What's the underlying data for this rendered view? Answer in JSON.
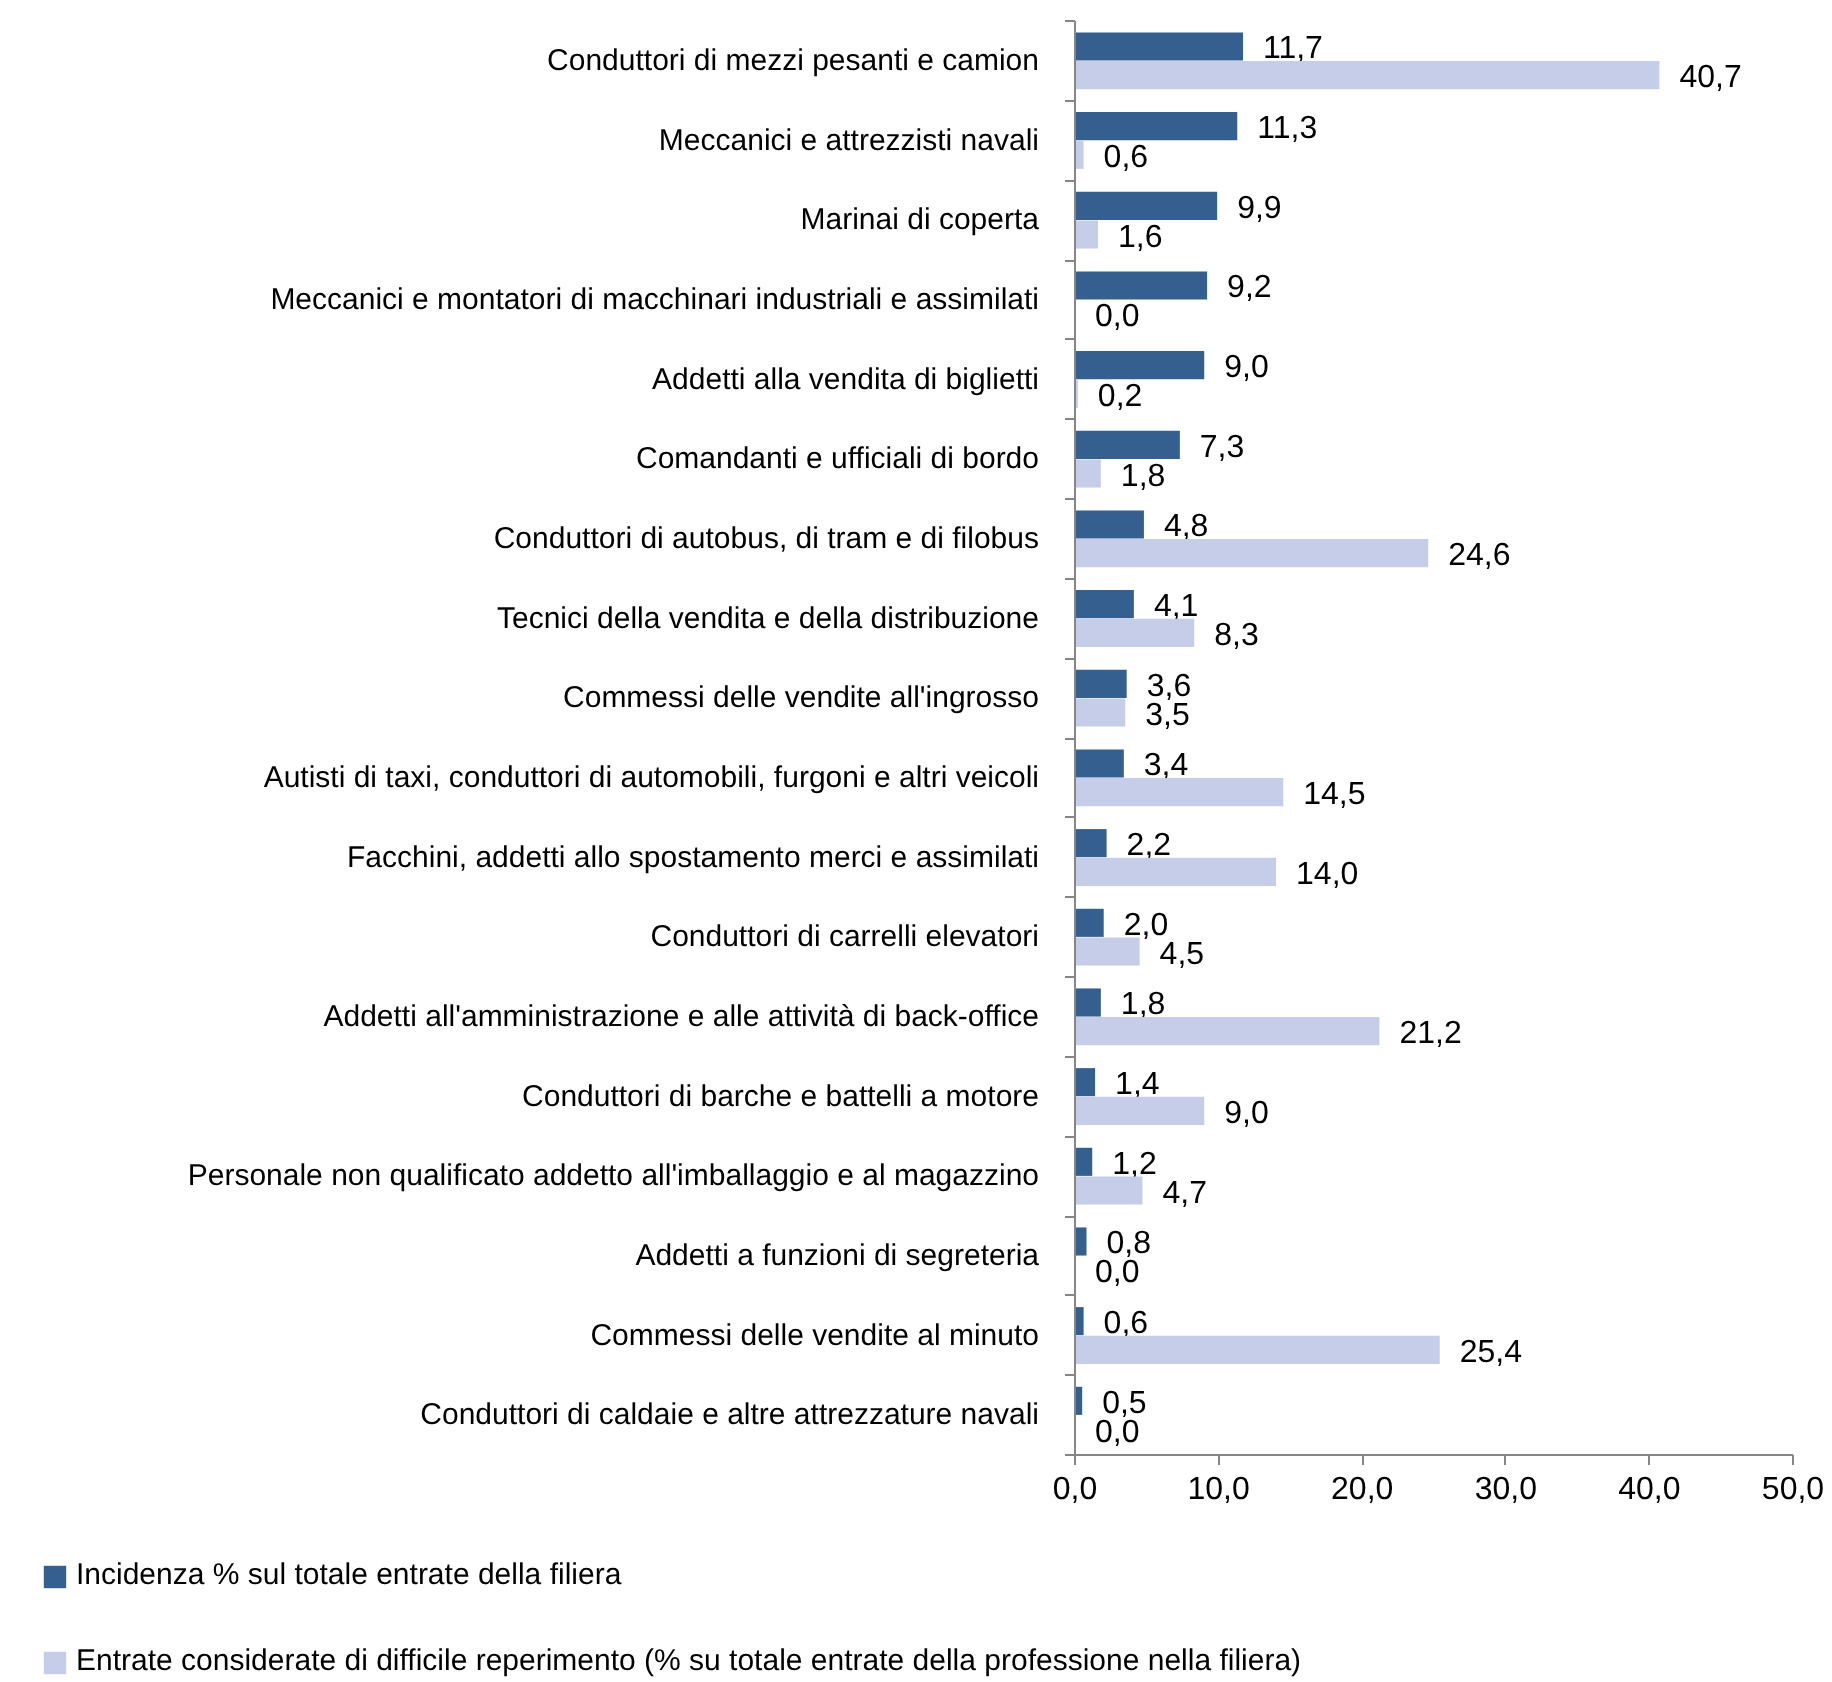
{
  "chart_data": {
    "type": "bar",
    "orientation": "horizontal",
    "categories": [
      "Conduttori di mezzi pesanti e camion",
      "Meccanici e attrezzisti navali",
      "Marinai di coperta",
      "Meccanici e montatori di macchinari industriali e assimilati",
      "Addetti alla vendita di biglietti",
      "Comandanti e ufficiali di bordo",
      "Conduttori di autobus, di tram e di filobus",
      "Tecnici della vendita e della distribuzione",
      "Commessi delle vendite all'ingrosso",
      "Autisti di taxi, conduttori di automobili, furgoni e altri veicoli",
      "Facchini, addetti allo spostamento merci e assimilati",
      "Conduttori di carrelli elevatori",
      "Addetti all'amministrazione e alle attività di back-office",
      "Conduttori di barche e battelli a motore",
      "Personale non qualificato addetto all'imballaggio e al magazzino",
      "Addetti a funzioni di segreteria",
      "Commessi delle vendite al minuto",
      "Conduttori di caldaie e altre attrezzature navali"
    ],
    "series": [
      {
        "name": "Incidenza % sul totale entrate della filiera",
        "color": "#355f8f",
        "values": [
          11.7,
          11.3,
          9.9,
          9.2,
          9.0,
          7.3,
          4.8,
          4.1,
          3.6,
          3.4,
          2.2,
          2.0,
          1.8,
          1.4,
          1.2,
          0.8,
          0.6,
          0.5
        ],
        "value_labels": [
          "11,7",
          "11,3",
          "9,9",
          "9,2",
          "9,0",
          "7,3",
          "4,8",
          "4,1",
          "3,6",
          "3,4",
          "2,2",
          "2,0",
          "1,8",
          "1,4",
          "1,2",
          "0,8",
          "0,6",
          "0,5"
        ]
      },
      {
        "name": "Entrate considerate di difficile reperimento (% su totale entrate della professione nella filiera)",
        "color": "#c6cde9",
        "values": [
          40.7,
          0.6,
          1.6,
          0.0,
          0.2,
          1.8,
          24.6,
          8.3,
          3.5,
          14.5,
          14.0,
          4.5,
          21.2,
          9.0,
          4.7,
          0.0,
          25.4,
          0.0
        ],
        "value_labels": [
          "40,7",
          "0,6",
          "1,6",
          "0,0",
          "0,2",
          "1,8",
          "24,6",
          "8,3",
          "3,5",
          "14,5",
          "14,0",
          "4,5",
          "21,2",
          "9,0",
          "4,7",
          "0,0",
          "25,4",
          "0,0"
        ]
      }
    ],
    "xlim": [
      0,
      50
    ],
    "xticks": [
      {
        "value": 0,
        "label": "0,0"
      },
      {
        "value": 10,
        "label": "10,0"
      },
      {
        "value": 20,
        "label": "20,0"
      },
      {
        "value": 30,
        "label": "30,0"
      },
      {
        "value": 40,
        "label": "40,0"
      },
      {
        "value": 50,
        "label": "50,0"
      }
    ],
    "grid": false,
    "legend": "bottom left"
  }
}
